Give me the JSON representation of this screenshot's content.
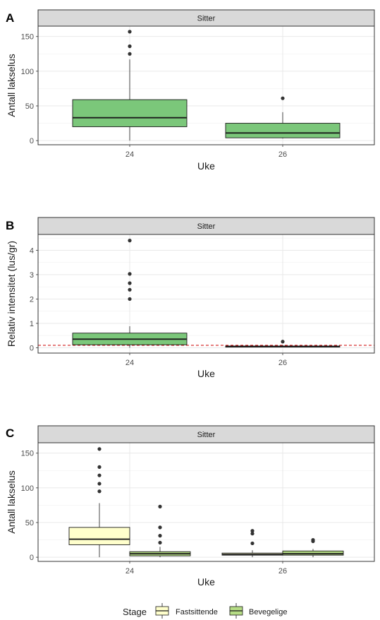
{
  "chart_data": [
    {
      "type": "box",
      "tag": "A",
      "facet": "Sitter",
      "xlabel": "Uke",
      "ylabel": "Antall lakselus",
      "categories": [
        "24",
        "26"
      ],
      "ylim": [
        -6,
        165
      ],
      "yticks": [
        0,
        50,
        100,
        150
      ],
      "grid": true,
      "boxes": [
        {
          "category": "24",
          "fill": "#7bc77a",
          "min": 0,
          "q1": 20,
          "median": 33,
          "q3": 59,
          "max": 117,
          "outliers": [
            125,
            136,
            157
          ]
        },
        {
          "category": "26",
          "fill": "#7bc77a",
          "min": 3,
          "q1": 4,
          "median": 11,
          "q3": 25,
          "max": 41,
          "outliers": [
            61
          ]
        }
      ]
    },
    {
      "type": "box",
      "tag": "B",
      "facet": "Sitter",
      "xlabel": "Uke",
      "ylabel": "Relativ intensitet (lus/gr)",
      "categories": [
        "24",
        "26"
      ],
      "ylim": [
        -0.22,
        4.65
      ],
      "yticks": [
        0,
        1,
        2,
        3,
        4
      ],
      "grid": true,
      "reference_line": {
        "value": 0.1,
        "color": "#cc0000",
        "style": "dashed"
      },
      "boxes": [
        {
          "category": "24",
          "fill": "#7bc77a",
          "min": 0.0,
          "q1": 0.12,
          "median": 0.35,
          "q3": 0.6,
          "max": 0.88,
          "outliers": [
            2.0,
            2.38,
            2.65,
            3.03,
            4.4
          ]
        },
        {
          "category": "26",
          "fill": "#7bc77a",
          "min": 0.03,
          "q1": 0.03,
          "median": 0.05,
          "q3": 0.07,
          "max": 0.1,
          "outliers": [
            0.25
          ]
        }
      ]
    },
    {
      "type": "box",
      "tag": "C",
      "facet": "Sitter",
      "xlabel": "Uke",
      "ylabel": "Antall lakselus",
      "categories": [
        "24",
        "26"
      ],
      "ylim": [
        -6,
        165
      ],
      "yticks": [
        0,
        50,
        100,
        150
      ],
      "grid": true,
      "legend": {
        "title": "Stage",
        "position": "bottom"
      },
      "series": [
        {
          "name": "Fastsittende",
          "color": "#ffffcc"
        },
        {
          "name": "Bevegelige",
          "color": "#b5dc85"
        }
      ],
      "boxes": [
        {
          "category": "24",
          "series": "Fastsittende",
          "min": 0,
          "q1": 18,
          "median": 26,
          "q3": 43,
          "max": 78,
          "outliers": [
            95,
            106,
            118,
            130,
            156
          ]
        },
        {
          "category": "24",
          "series": "Bevegelige",
          "min": 0,
          "q1": 2,
          "median": 5,
          "q3": 8,
          "max": 15,
          "outliers": [
            21,
            31,
            43,
            73
          ]
        },
        {
          "category": "26",
          "series": "Fastsittende",
          "min": 0,
          "q1": 3,
          "median": 4,
          "q3": 6,
          "max": 10,
          "outliers": [
            20,
            34,
            38
          ]
        },
        {
          "category": "26",
          "series": "Bevegelige",
          "min": 0,
          "q1": 3,
          "median": 5,
          "q3": 9,
          "max": 12,
          "outliers": [
            23,
            25
          ]
        }
      ]
    }
  ]
}
